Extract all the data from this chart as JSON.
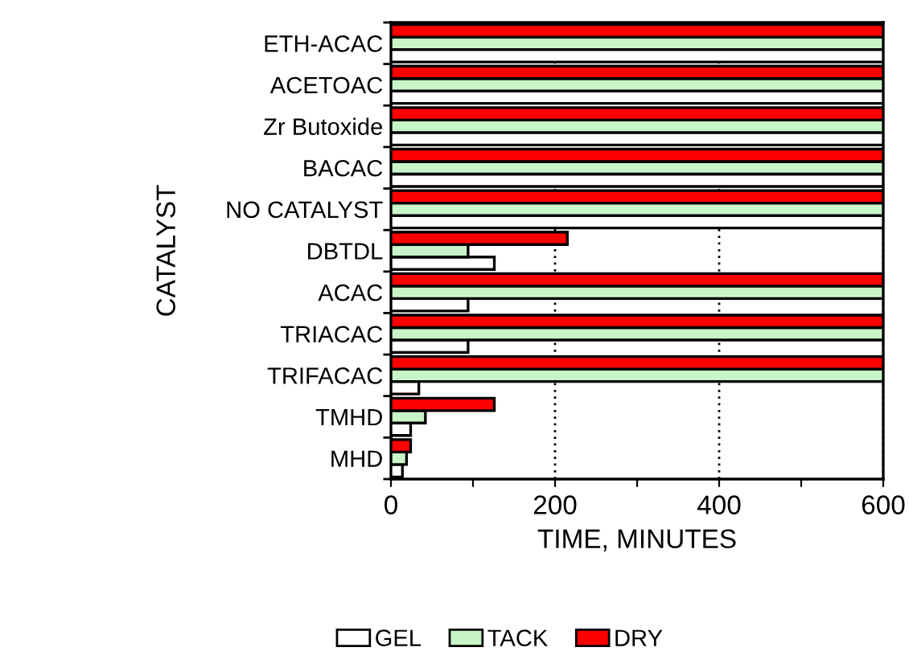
{
  "chart_data": {
    "type": "bar",
    "orientation": "horizontal",
    "xlabel": "TIME, MINUTES",
    "ylabel": "CATALYST",
    "categories": [
      "ETH-ACAC",
      "ACETOAC",
      "Zr Butoxide",
      "BACAC",
      "NO CATALYST",
      "DBTDL",
      "ACAC",
      "TRIACAC",
      "TRIFACAC",
      "TMHD",
      "MHD"
    ],
    "series": [
      {
        "name": "GEL",
        "color": "#ffffff",
        "values": [
          600,
          600,
          600,
          600,
          600,
          126,
          94,
          94,
          34,
          24,
          14
        ]
      },
      {
        "name": "TACK",
        "color": "#c8f5c8",
        "values": [
          600,
          600,
          600,
          600,
          600,
          94,
          600,
          600,
          600,
          42,
          19
        ]
      },
      {
        "name": "DRY",
        "color": "#ff0000",
        "values": [
          600,
          600,
          600,
          600,
          600,
          215,
          600,
          600,
          600,
          126,
          24
        ]
      }
    ],
    "xlim": [
      0,
      600
    ],
    "xticks": [
      0,
      {
        "value": 100,
        "label": null
      },
      200,
      {
        "value": 300,
        "label": null
      },
      400,
      {
        "value": 500,
        "label": null
      },
      600
    ],
    "grid": "x",
    "legend": "bottom"
  }
}
